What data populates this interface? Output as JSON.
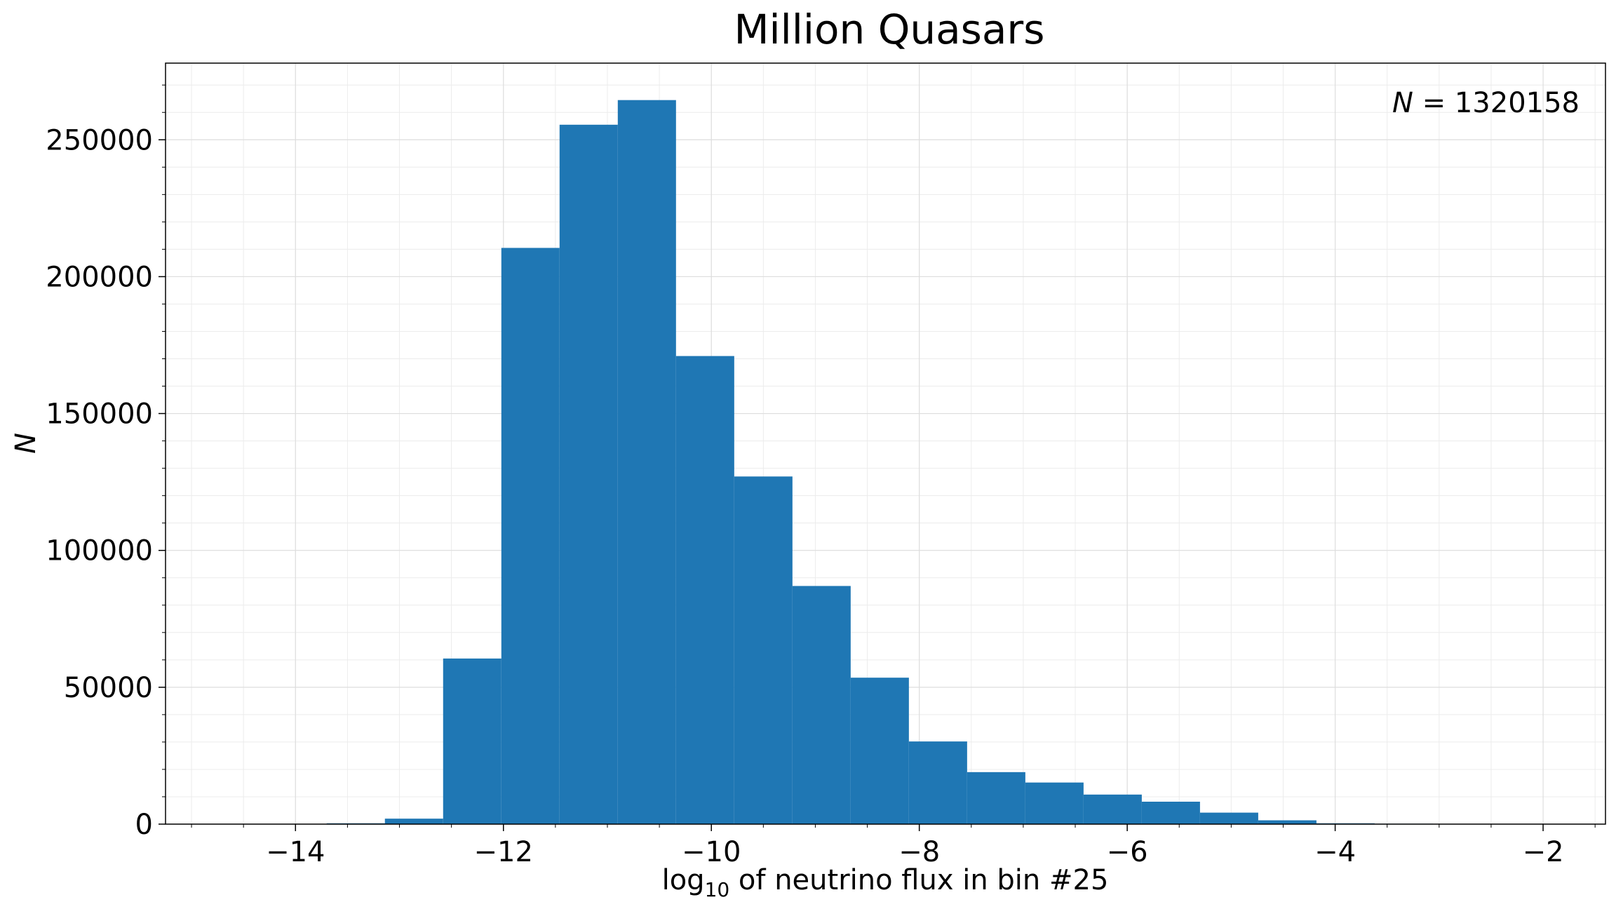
{
  "chart_data": {
    "type": "bar",
    "title": "Million Quasars",
    "xlabel": {
      "prefix": "log",
      "subscript": "10",
      "suffix": " of neutrino flux in bin #25"
    },
    "ylabel": "N",
    "annotation": {
      "lhs": "N",
      "rhs": " = 1320158"
    },
    "bar_color": "#1f77b4",
    "grid": true,
    "xlim": [
      -15.25,
      -1.4
    ],
    "ylim": [
      0,
      278000
    ],
    "x_ticks": [
      -14,
      -12,
      -10,
      -8,
      -6,
      -4,
      -2
    ],
    "x_tick_labels": [
      "−14",
      "−12",
      "−10",
      "−8",
      "−6",
      "−4",
      "−2"
    ],
    "y_ticks": [
      0,
      50000,
      100000,
      150000,
      200000,
      250000
    ],
    "y_tick_labels": [
      "0",
      "50000",
      "100000",
      "150000",
      "200000",
      "250000"
    ],
    "bin_edges": [
      -13.7,
      -13.14,
      -12.58,
      -12.02,
      -11.46,
      -10.9,
      -10.34,
      -9.78,
      -9.22,
      -8.66,
      -8.1,
      -7.54,
      -6.98,
      -6.42,
      -5.86,
      -5.3,
      -4.74,
      -4.18,
      -3.62,
      -3.06
    ],
    "values": [
      300,
      2000,
      60500,
      210500,
      255500,
      264500,
      171000,
      127000,
      87000,
      53500,
      30200,
      19000,
      15200,
      10800,
      8200,
      4200,
      1400,
      300,
      150
    ]
  }
}
